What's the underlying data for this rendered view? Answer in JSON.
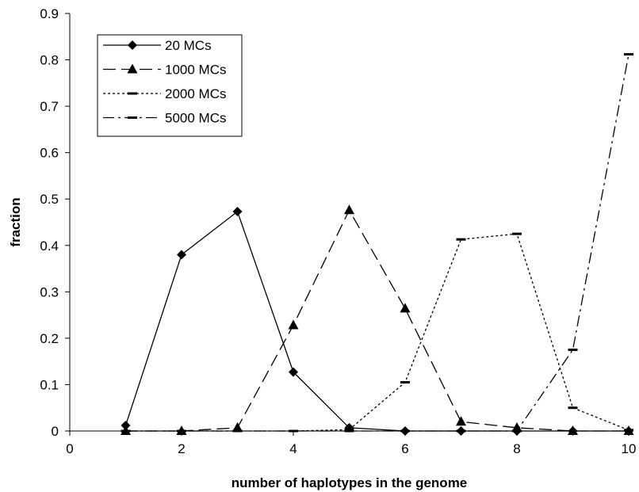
{
  "chart_data": {
    "type": "line",
    "title": "",
    "xlabel": "number of haplotypes in the genome",
    "ylabel": "fraction",
    "xlim": [
      0,
      10
    ],
    "ylim": [
      0,
      0.9
    ],
    "x_ticks": [
      0,
      2,
      4,
      6,
      8,
      10
    ],
    "y_ticks": [
      0,
      0.1,
      0.2,
      0.3,
      0.4,
      0.5,
      0.6,
      0.7,
      0.8,
      0.9
    ],
    "x_tick_labels": [
      "0",
      "2",
      "4",
      "6",
      "8",
      "10"
    ],
    "y_tick_labels": [
      "0",
      "0.1",
      "0.2",
      "0.3",
      "0.4",
      "0.5",
      "0.6",
      "0.7",
      "0.8",
      "0.9"
    ],
    "grid": false,
    "legend_position": "top-left",
    "x": [
      1,
      2,
      3,
      4,
      5,
      6,
      7,
      8,
      9,
      10
    ],
    "series": [
      {
        "name": "20 MCs",
        "values": [
          0.012,
          0.38,
          0.473,
          0.127,
          0.007,
          0.0,
          0.0,
          0.0,
          0.0,
          0.0
        ],
        "marker": "diamond",
        "dash": "solid"
      },
      {
        "name": "1000 MCs",
        "values": [
          0.0,
          0.0,
          0.007,
          0.228,
          0.476,
          0.264,
          0.02,
          0.007,
          0.0,
          0.0
        ],
        "marker": "triangle",
        "dash": "long-dash"
      },
      {
        "name": "2000 MCs",
        "values": [
          0.0,
          0.0,
          0.0,
          0.0,
          0.003,
          0.105,
          0.413,
          0.425,
          0.05,
          0.002
        ],
        "marker": "dash",
        "dash": "dotted"
      },
      {
        "name": "5000 MCs",
        "values": [
          0.0,
          0.0,
          0.0,
          0.0,
          0.0,
          0.0,
          0.0,
          0.0,
          0.175,
          0.812
        ],
        "marker": "dash",
        "dash": "dash-dot"
      }
    ]
  }
}
